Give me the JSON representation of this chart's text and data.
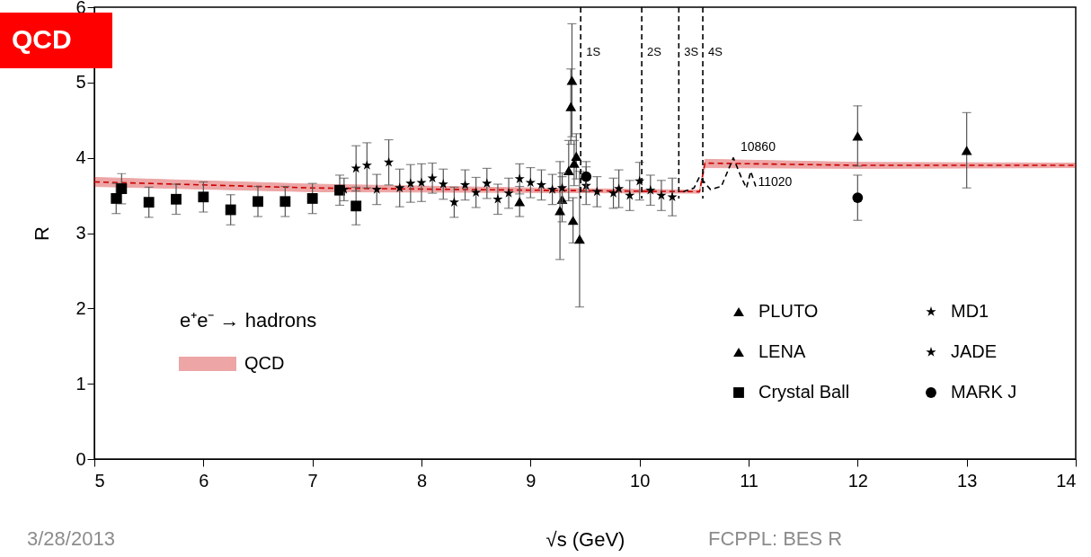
{
  "chart_data": {
    "type": "scatter",
    "title": "QCD",
    "xlabel": "√s   (GeV)",
    "ylabel": "R",
    "xlim": [
      5,
      14
    ],
    "ylim": [
      0,
      6
    ],
    "xticks": [
      5,
      6,
      7,
      8,
      9,
      10,
      11,
      12,
      13,
      14
    ],
    "yticks": [
      0,
      1,
      2,
      3,
      4,
      5,
      6
    ],
    "grid": false,
    "legend": "bottom",
    "series": [
      {
        "name": "QCD",
        "type": "line",
        "line_style": "dashed",
        "color": "#cc0000",
        "x": [
          5,
          7,
          9,
          10.55,
          10.6,
          12,
          14
        ],
        "values": [
          3.68,
          3.6,
          3.57,
          3.55,
          3.93,
          3.9,
          3.9
        ],
        "lower": [
          3.62,
          3.55,
          3.54,
          3.53,
          3.87,
          3.86,
          3.87
        ],
        "upper": [
          3.74,
          3.65,
          3.6,
          3.57,
          3.98,
          3.94,
          3.93
        ]
      },
      {
        "type": "line",
        "color": "#000000",
        "line_style": "dashed",
        "x": [
          10.4,
          10.5,
          10.55,
          10.65,
          10.75,
          10.86,
          10.93,
          10.98,
          11.02,
          11.07
        ],
        "values": [
          3.55,
          3.6,
          3.75,
          3.58,
          3.62,
          4.0,
          3.75,
          3.6,
          3.82,
          3.6
        ]
      },
      {
        "name": "PLUTO",
        "marker": "triangle",
        "color": "#000000",
        "x": [
          9.29,
          9.35,
          9.37,
          9.38,
          9.39,
          9.4,
          9.42,
          9.45,
          12.0,
          13.0
        ],
        "values": [
          3.45,
          3.83,
          4.68,
          5.03,
          3.17,
          3.93,
          4.02,
          2.92,
          4.29,
          4.1
        ],
        "errors": [
          0.3,
          0.4,
          0.5,
          0.75,
          0.3,
          0.3,
          0.3,
          0.9,
          0.4,
          0.5
        ]
      },
      {
        "name": "LENA",
        "marker": "triangle",
        "color": "#000000",
        "x": [
          8.9,
          9.27
        ],
        "values": [
          3.42,
          3.3
        ],
        "errors": [
          0.2,
          0.65
        ]
      },
      {
        "name": "Crystal Ball",
        "marker": "square",
        "color": "#000000",
        "x": [
          5.2,
          5.25,
          5.5,
          5.75,
          6.0,
          6.25,
          6.5,
          6.75,
          7.0,
          7.25,
          7.4
        ],
        "values": [
          3.46,
          3.59,
          3.41,
          3.45,
          3.48,
          3.31,
          3.42,
          3.42,
          3.46,
          3.57,
          3.36
        ],
        "errors": [
          0.2,
          0.2,
          0.2,
          0.2,
          0.2,
          0.2,
          0.2,
          0.2,
          0.2,
          0.2,
          0.25
        ]
      },
      {
        "name": "MD1",
        "marker": "star",
        "color": "#000000",
        "x": [
          9.51,
          9.61,
          9.76,
          9.81,
          9.91,
          10.0,
          10.1,
          10.2,
          10.3
        ],
        "values": [
          3.63,
          3.55,
          3.53,
          3.59,
          3.5,
          3.69,
          3.57,
          3.5,
          3.48
        ],
        "errors": [
          0.25,
          0.2,
          0.2,
          0.25,
          0.2,
          0.25,
          0.2,
          0.2,
          0.25
        ]
      },
      {
        "name": "JADE",
        "marker": "star",
        "color": "#000000",
        "x": [
          7.29,
          7.4,
          7.5,
          7.59,
          7.7,
          7.8,
          7.9,
          8.0,
          8.1,
          8.2,
          8.3,
          8.4,
          8.5,
          8.6,
          8.7,
          8.8,
          8.9,
          9.0,
          9.1,
          9.2,
          9.29
        ],
        "values": [
          3.58,
          3.86,
          3.9,
          3.58,
          3.94,
          3.6,
          3.66,
          3.67,
          3.73,
          3.65,
          3.41,
          3.64,
          3.54,
          3.66,
          3.45,
          3.53,
          3.72,
          3.67,
          3.64,
          3.58,
          3.6
        ],
        "errors": [
          0.15,
          0.3,
          0.3,
          0.2,
          0.3,
          0.25,
          0.25,
          0.25,
          0.2,
          0.2,
          0.2,
          0.2,
          0.2,
          0.2,
          0.2,
          0.2,
          0.2,
          0.2,
          0.2,
          0.2,
          0.2
        ]
      },
      {
        "name": "MARK J",
        "marker": "circle",
        "color": "#000000",
        "x": [
          9.51,
          12.0
        ],
        "values": [
          3.75,
          3.47
        ],
        "errors": [
          0.2,
          0.3
        ]
      }
    ],
    "ref_lines": [
      {
        "axis": "x",
        "value": 9.46,
        "label": "1S",
        "color": "#000000",
        "line_style": "dashed"
      },
      {
        "axis": "x",
        "value": 10.02,
        "label": "2S",
        "color": "#000000",
        "line_style": "dashed"
      },
      {
        "axis": "x",
        "value": 10.36,
        "label": "3S",
        "color": "#000000",
        "line_style": "dashed"
      },
      {
        "axis": "x",
        "value": 10.58,
        "label": "4S",
        "color": "#000000",
        "line_style": "dashed"
      }
    ],
    "annotations": [
      {
        "text": "10860",
        "x": 10.86,
        "y": 4.0
      },
      {
        "text": "11020",
        "x": 11.02,
        "y": 3.82
      },
      "e⁺e⁻ → hadrons",
      "3/28/2013",
      "FCPPL: BES R"
    ]
  }
}
